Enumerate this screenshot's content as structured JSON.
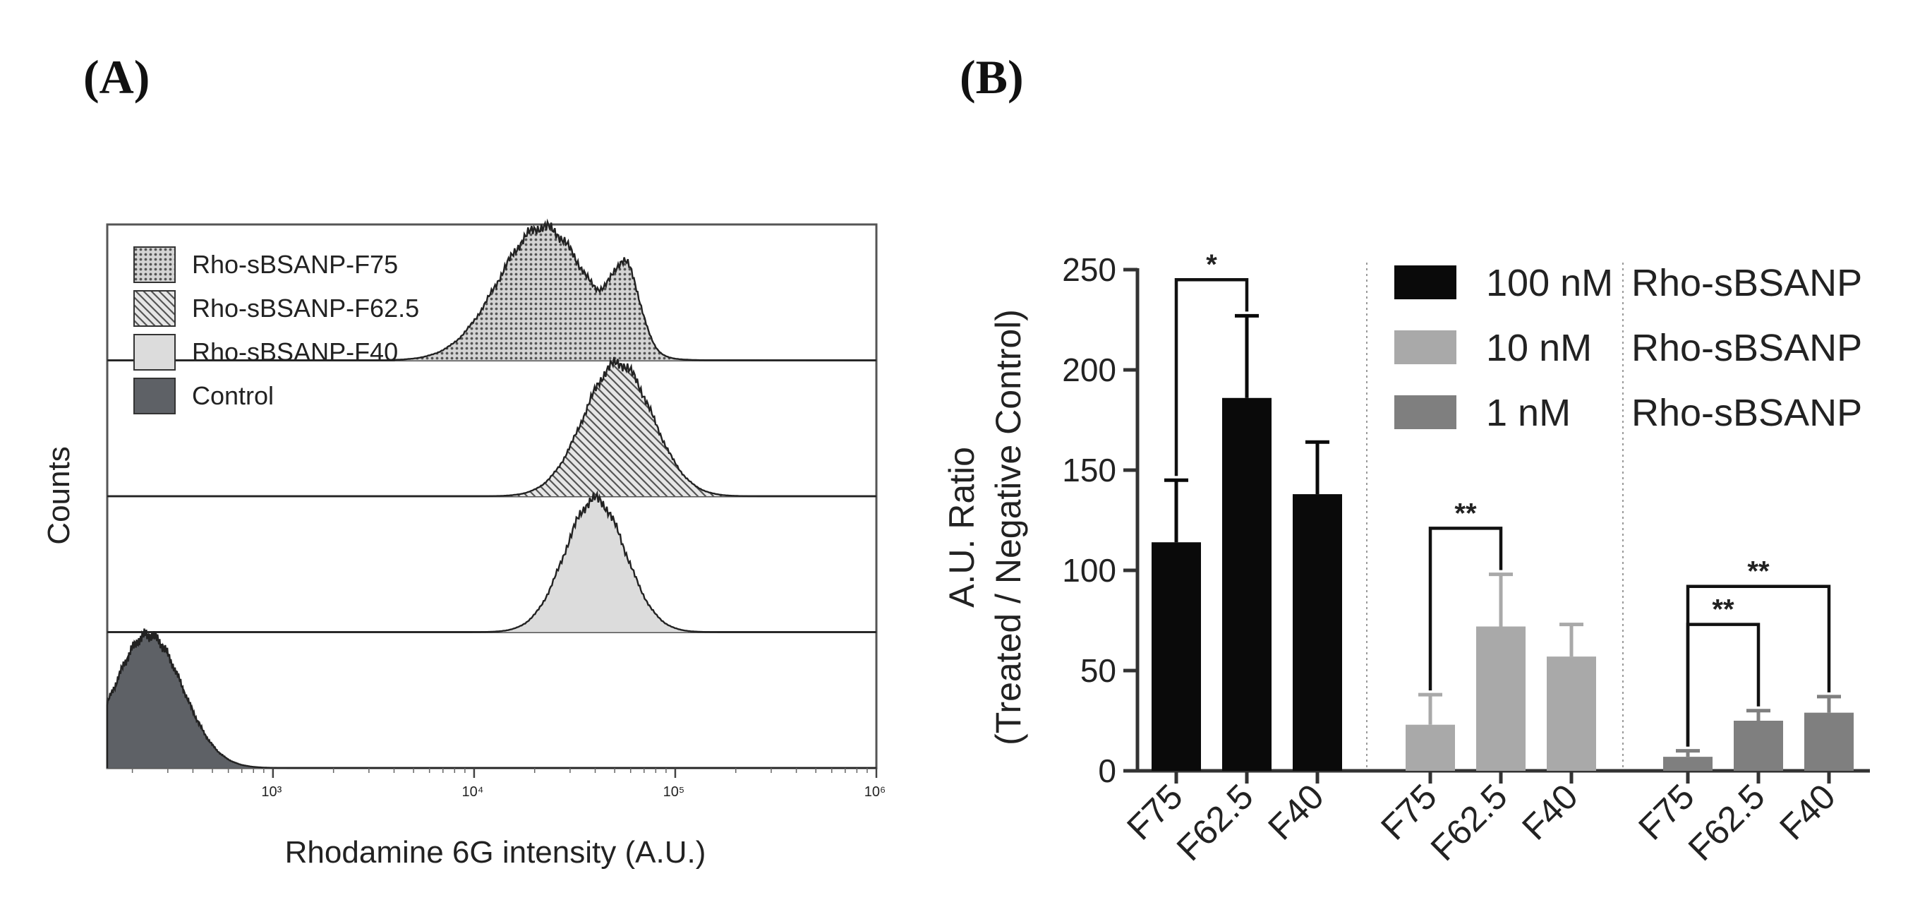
{
  "panel_labels": [
    "(A)",
    "(B)"
  ],
  "colors": {
    "black": "#0a0a0a",
    "light_gray": "#a9a9a9",
    "mid_gray": "#7f7f7f",
    "control_fill": "#5e6166",
    "f40_fill": "#dcdcdc"
  },
  "chart_data": [
    {
      "type": "histogram",
      "panel": "(A)",
      "xlabel": "Rhodamine 6G intensity (A.U.)",
      "ylabel": "Counts",
      "x_scale": "log",
      "xlim": [
        150,
        1000000
      ],
      "xticks": [
        {
          "value": 1000,
          "label": "10³"
        },
        {
          "value": 10000,
          "label": "10⁴"
        },
        {
          "value": 100000,
          "label": "10⁵"
        },
        {
          "value": 1000000,
          "label": "10⁶"
        }
      ],
      "legend": [
        {
          "label": "Rho-sBSANP-F75",
          "pattern": "dots"
        },
        {
          "label": "Rho-sBSANP-F62.5",
          "pattern": "hatch"
        },
        {
          "label": "Rho-sBSANP-F40",
          "pattern": "light"
        },
        {
          "label": "Control",
          "pattern": "dark"
        }
      ],
      "series": [
        {
          "name": "Rho-sBSANP-F75",
          "pattern": "dots",
          "row": 0,
          "peaks": [
            [
              22000,
              0.85,
              0.22
            ],
            [
              57000,
              0.48,
              0.07
            ]
          ],
          "range": [
            4000,
            150000
          ]
        },
        {
          "name": "Rho-sBSANP-F62.5",
          "pattern": "hatch",
          "row": 1,
          "peaks": [
            [
              52000,
              1.0,
              0.17
            ]
          ],
          "range": [
            8000,
            300000
          ]
        },
        {
          "name": "Rho-sBSANP-F40",
          "pattern": "light",
          "row": 2,
          "peaks": [
            [
              40000,
              1.0,
              0.15
            ]
          ],
          "range": [
            8000,
            300000
          ]
        },
        {
          "name": "Control",
          "pattern": "dark",
          "row": 3,
          "peaks": [
            [
              240,
              1.0,
              0.17
            ]
          ],
          "range": [
            150,
            1200
          ]
        }
      ]
    },
    {
      "type": "bar",
      "panel": "(B)",
      "ylabel": "A.U. Ratio",
      "ylabel2": "(Treated / Negative Control)",
      "ylim": [
        0,
        250
      ],
      "yticks": [
        0,
        50,
        100,
        150,
        200,
        250
      ],
      "categories": [
        "F75",
        "F62.5",
        "F40"
      ],
      "groups": [
        {
          "concentration": "100 nM",
          "label": "Rho-sBSANP",
          "color": "#0a0a0a",
          "values": [
            114,
            186,
            138
          ],
          "errors": [
            31,
            41,
            26
          ]
        },
        {
          "concentration": "10 nM",
          "label": "Rho-sBSANP",
          "color": "#a9a9a9",
          "values": [
            23,
            72,
            57
          ],
          "errors": [
            15,
            26,
            16
          ]
        },
        {
          "concentration": "1 nM",
          "label": "Rho-sBSANP",
          "color": "#7f7f7f",
          "values": [
            7,
            25,
            29
          ],
          "errors": [
            3,
            5,
            8
          ]
        }
      ],
      "significance": [
        {
          "group": 0,
          "from": 0,
          "to": 1,
          "label": "*"
        },
        {
          "group": 1,
          "from": 0,
          "to": 1,
          "label": "**"
        },
        {
          "group": 2,
          "from": 0,
          "to": 1,
          "label": "**"
        },
        {
          "group": 2,
          "from": 0,
          "to": 2,
          "label": "**"
        }
      ]
    }
  ]
}
